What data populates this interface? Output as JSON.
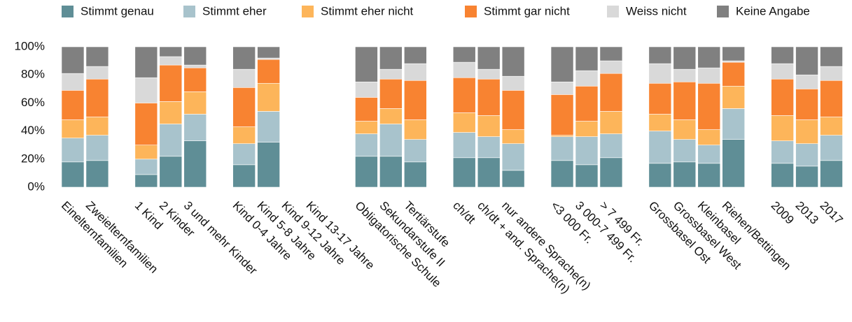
{
  "chart_data": {
    "type": "stacked_bar",
    "categories": [
      "Einelternfamilien",
      "Zweielternfamilien",
      null,
      "1 Kind",
      "2 Kinder",
      "3 und mehr Kinder",
      null,
      "Kind 0-4 Jahre",
      "Kind 5-8 Jahre",
      "Kind 9-12 Jahre",
      "Kind 13-17 Jahre",
      null,
      "Obligatorische Schule",
      "Sekundarstufe II",
      "Tertiärstufe",
      null,
      "ch/dt",
      "ch/dt + and. Sprache(n)",
      "nur andere Sprache(n)",
      null,
      "<3 000 Fr.",
      "3 000-7 499 Fr.",
      "> 7 499 Fr.",
      null,
      "Grossbasel Ost",
      "Grossbasel West",
      "Kleinbasel",
      "Riehen/Bettingen",
      null,
      "2009",
      "2013",
      "2017"
    ],
    "series": [
      {
        "name": "Stimmt genau",
        "color": "#5f8e96",
        "values": [
          18,
          19,
          null,
          9,
          22,
          33,
          null,
          16,
          32,
          null,
          null,
          null,
          22,
          22,
          18,
          null,
          21,
          21,
          12,
          null,
          19,
          16,
          21,
          null,
          17,
          18,
          17,
          34,
          null,
          17,
          15,
          19
        ]
      },
      {
        "name": "Stimmt eher",
        "color": "#a8c3cc",
        "values": [
          17,
          18,
          null,
          11,
          23,
          19,
          null,
          15,
          22,
          null,
          null,
          null,
          16,
          23,
          16,
          null,
          18,
          15,
          19,
          null,
          17,
          20,
          17,
          null,
          23,
          16,
          13,
          22,
          null,
          16,
          16,
          18
        ]
      },
      {
        "name": "Stimmt eher nicht",
        "color": "#fdb55a",
        "values": [
          13,
          13,
          null,
          10,
          16,
          16,
          null,
          12,
          20,
          null,
          null,
          null,
          9,
          11,
          14,
          null,
          14,
          15,
          10,
          null,
          1,
          11,
          16,
          null,
          12,
          14,
          11,
          16,
          null,
          18,
          17,
          13
        ]
      },
      {
        "name": "Stimmt gar nicht",
        "color": "#f88331",
        "values": [
          21,
          27,
          null,
          30,
          26,
          17,
          null,
          28,
          17,
          null,
          null,
          null,
          17,
          21,
          28,
          null,
          25,
          26,
          28,
          null,
          29,
          25,
          27,
          null,
          22,
          27,
          33,
          17,
          null,
          26,
          22,
          26
        ]
      },
      {
        "name": "Weiss nicht",
        "color": "#d9d9d9",
        "values": [
          12,
          9,
          null,
          18,
          6,
          2,
          null,
          13,
          1,
          null,
          null,
          null,
          11,
          7,
          12,
          null,
          11,
          7,
          10,
          null,
          9,
          11,
          9,
          null,
          14,
          9,
          11,
          1,
          null,
          11,
          10,
          10
        ]
      },
      {
        "name": "Keine Angabe",
        "color": "#808080",
        "values": [
          19,
          14,
          null,
          22,
          7,
          13,
          null,
          16,
          8,
          null,
          null,
          null,
          25,
          16,
          12,
          null,
          11,
          16,
          21,
          null,
          25,
          17,
          10,
          null,
          12,
          16,
          15,
          10,
          null,
          12,
          20,
          14
        ]
      }
    ],
    "ylim": [
      0,
      100
    ],
    "yticks": [
      {
        "value": 0,
        "label": "0%"
      },
      {
        "value": 20,
        "label": "20%"
      },
      {
        "value": 40,
        "label": "40%"
      },
      {
        "value": 60,
        "label": "60%"
      },
      {
        "value": 80,
        "label": "80%"
      },
      {
        "value": 100,
        "label": "100%"
      }
    ],
    "legend": "top",
    "grid": false
  }
}
